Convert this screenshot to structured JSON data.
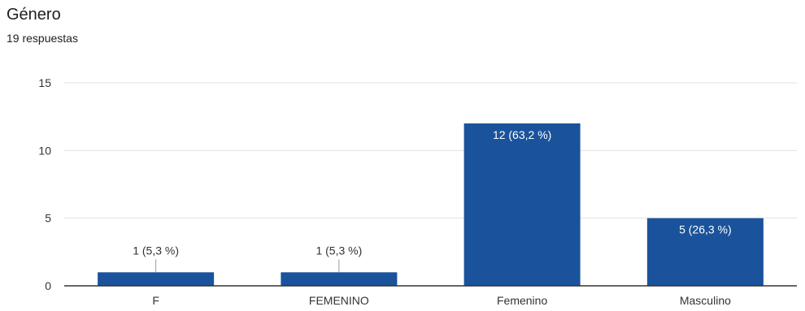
{
  "header": {
    "title": "Género",
    "subtitle": "19 respuestas"
  },
  "colors": {
    "bar": "#1a539b",
    "grid": "#e0e0e0",
    "axis": "#333333",
    "text": "#202124",
    "label_inside": "#ffffff"
  },
  "chart_data": {
    "type": "bar",
    "title": "Género",
    "subtitle": "19 respuestas",
    "categories": [
      "F",
      "FEMENINO",
      "Femenino",
      "Masculino"
    ],
    "values": [
      1,
      1,
      12,
      5
    ],
    "data_labels": [
      "1 (5,3 %)",
      "1 (5,3 %)",
      "12 (63,2 %)",
      "5 (26,3 %)"
    ],
    "ylim": [
      0,
      15
    ],
    "yticks": [
      0,
      5,
      10,
      15
    ],
    "xlabel": "",
    "ylabel": "",
    "grid": true,
    "legend": "none"
  }
}
